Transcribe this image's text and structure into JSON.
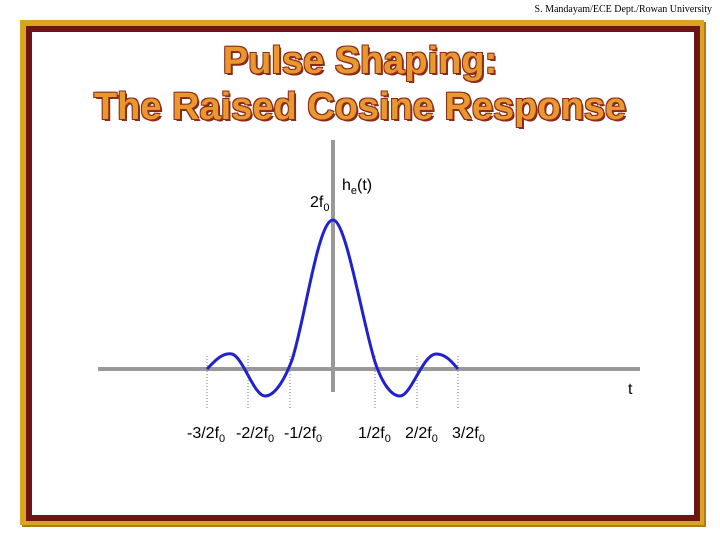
{
  "header": {
    "credit": "S. Mandayam/ECE Dept./Rowan University"
  },
  "slide": {
    "title_line1": "Pulse Shaping:",
    "title_line2": "The Raised Cosine Response"
  },
  "diagram": {
    "function_label": {
      "main": "h",
      "sub": "e",
      "suffix": "(t)"
    },
    "peak_label": {
      "main": "2f",
      "sub": "0"
    },
    "t_axis_label": "t",
    "tick_labels": [
      {
        "main": "-3/2f",
        "sub": "0"
      },
      {
        "main": "-2/2f",
        "sub": "0"
      },
      {
        "main": "-1/2f",
        "sub": "0"
      },
      {
        "main": "1/2f",
        "sub": "0"
      },
      {
        "main": "2/2f",
        "sub": "0"
      },
      {
        "main": "3/2f",
        "sub": "0"
      }
    ],
    "colors": {
      "curve": "#2222cc",
      "axis": "#999999",
      "frame_gold": "#d9a521",
      "frame_maroon": "#6e1413",
      "title": "#e8982c"
    }
  }
}
